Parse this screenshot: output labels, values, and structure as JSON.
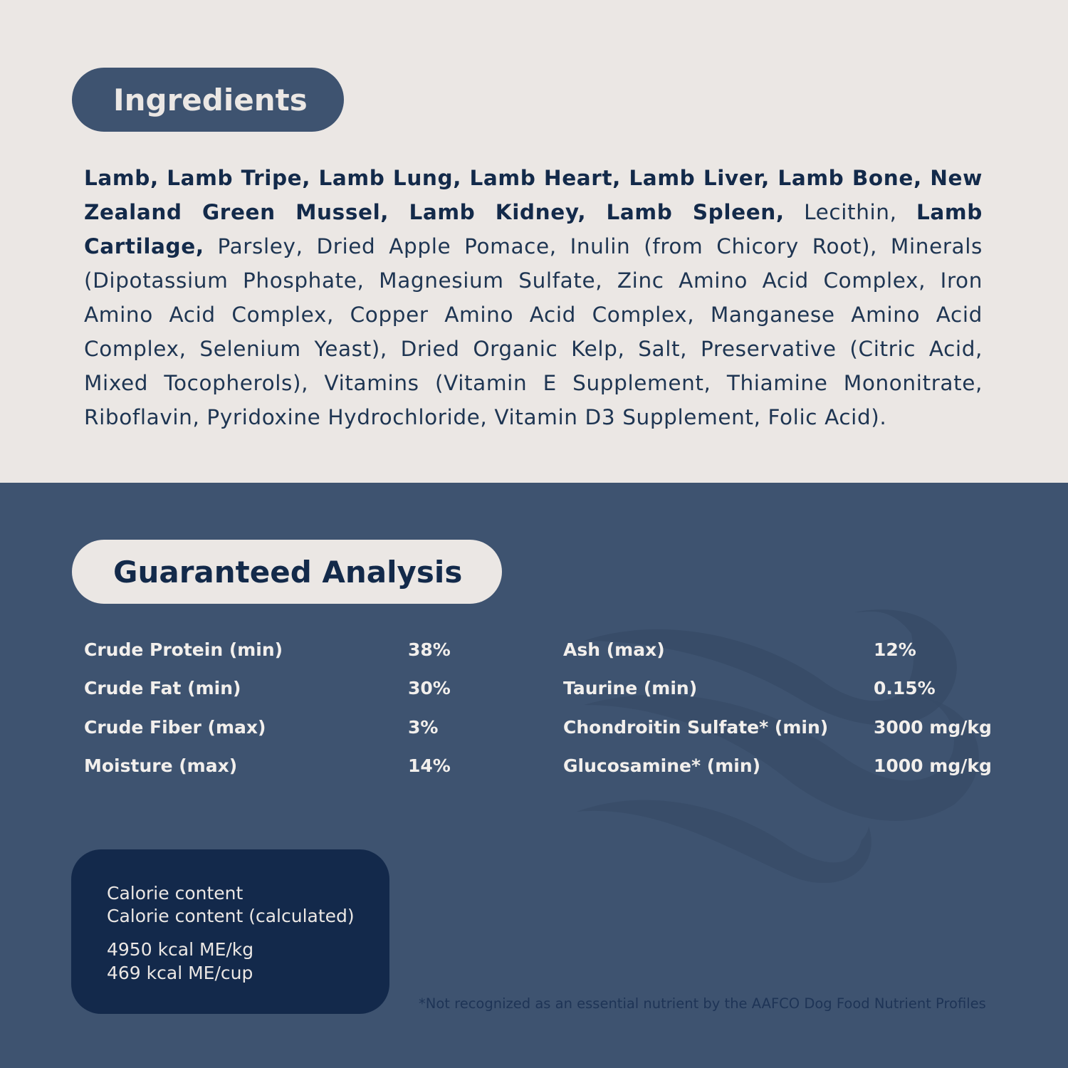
{
  "ingredients": {
    "heading": "Ingredients",
    "segments": [
      {
        "text": "Lamb, Lamb Tripe, Lamb Lung, Lamb Heart, Lamb Liver, Lamb Bone, New Zealand Green Mussel, Lamb Kidney, Lamb Spleen,",
        "bold": true
      },
      {
        "text": " Lecithin, ",
        "bold": false
      },
      {
        "text": "Lamb Cartilage,",
        "bold": true
      },
      {
        "text": " Parsley, Dried Apple Pomace, Inulin (from Chicory Root), Minerals (Dipotassium Phosphate, Magnesium Sulfate, Zinc Amino Acid Complex, Iron Amino Acid Complex, Copper Amino Acid Complex, Manganese Amino Acid Complex, Selenium Yeast), Dried Organic Kelp, Salt, Preservative (Citric Acid, Mixed Tocopherols), Vitamins (Vitamin E Supplement, Thiamine Mononitrate, Riboflavin, Pyridoxine Hydrochloride, Vitamin D3 Supplement, Folic Acid).",
        "bold": false
      }
    ]
  },
  "analysis": {
    "heading": "Guaranteed Analysis",
    "left": [
      {
        "label": "Crude Protein (min)",
        "value": "38%"
      },
      {
        "label": "Crude Fat (min)",
        "value": "30%"
      },
      {
        "label": "Crude Fiber (max)",
        "value": "3%"
      },
      {
        "label": "Moisture (max)",
        "value": "14%"
      }
    ],
    "right": [
      {
        "label": "Ash (max)",
        "value": "12%"
      },
      {
        "label": "Taurine (min)",
        "value": "0.15%"
      },
      {
        "label": "Chondroitin Sulfate* (min)",
        "value": "3000 mg/kg"
      },
      {
        "label": "Glucosamine* (min)",
        "value": "1000 mg/kg"
      }
    ]
  },
  "calorie": {
    "line1": "Calorie content",
    "line2": "Calorie content (calculated)",
    "value1": "4950 kcal ME/kg",
    "value2": "469 kcal ME/cup"
  },
  "footnote": "*Not recognized as an essential nutrient by the AAFCO Dog Food Nutrient Profiles",
  "colors": {
    "cream": "#ebe7e4",
    "slate_blue": "#3e5370",
    "navy": "#13294b"
  }
}
